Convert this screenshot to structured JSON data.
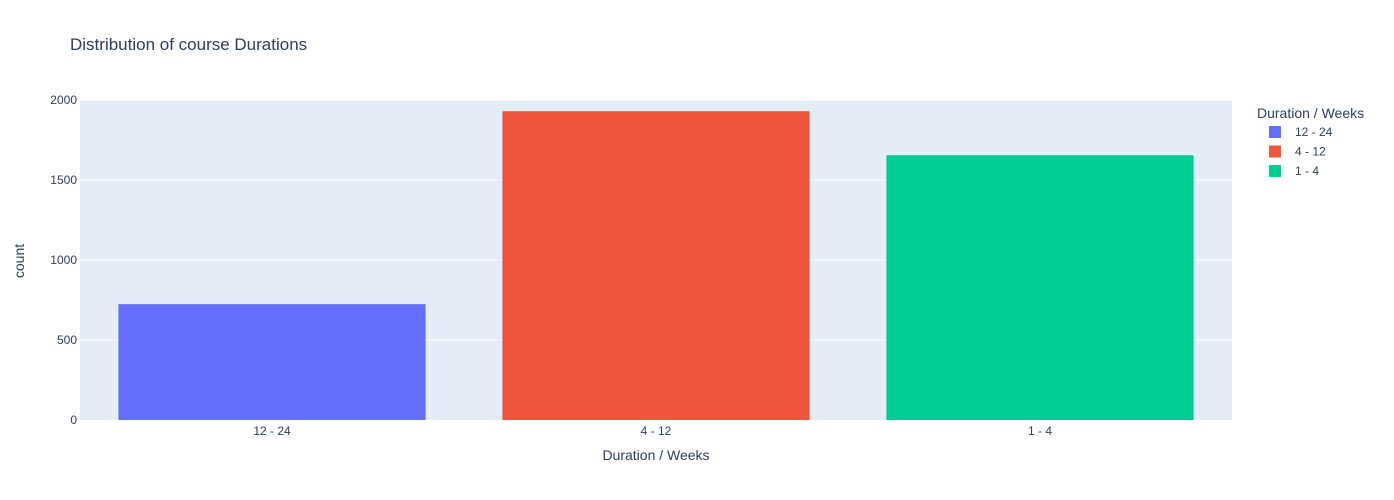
{
  "chart_data": {
    "type": "bar",
    "title": "Distribution of course Durations",
    "xlabel": "Duration / Weeks",
    "ylabel": "count",
    "categories": [
      "12 - 24",
      "4 - 12",
      "1 - 4"
    ],
    "series": [
      {
        "name": "12 - 24",
        "category": "12 - 24",
        "value": 724,
        "color": "#636efa"
      },
      {
        "name": "4 - 12",
        "category": "4 - 12",
        "value": 1930,
        "color": "#ef553b"
      },
      {
        "name": "1 - 4",
        "category": "1 - 4",
        "value": 1655,
        "color": "#00cc96"
      }
    ],
    "ylim": [
      0,
      2000
    ],
    "yticks": [
      0,
      500,
      1000,
      1500,
      2000
    ],
    "grid": true,
    "legend": {
      "title": "Duration / Weeks",
      "placement": "right"
    },
    "plot_background": "#e5ecf6"
  }
}
